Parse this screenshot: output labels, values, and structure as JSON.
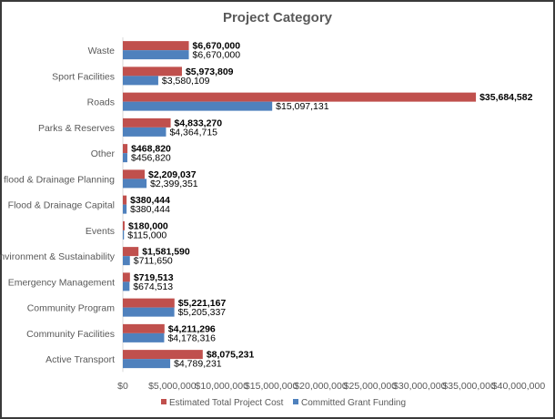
{
  "chart_data": {
    "type": "bar",
    "orientation": "horizontal",
    "title": "Project Category",
    "xlabel": "",
    "ylabel": "",
    "xlim": [
      0,
      40000000
    ],
    "x_ticks": [
      "$0",
      "$5,000,000",
      "$10,000,000",
      "$15,000,000",
      "$20,000,000",
      "$25,000,000",
      "$30,000,000",
      "$35,000,000",
      "$40,000,000"
    ],
    "grid": false,
    "legend_position": "bottom",
    "categories": [
      "Waste",
      "Sport Facilities",
      "Roads",
      "Parks & Reserves",
      "Other",
      "flood & Drainage Planning",
      "Flood & Drainage Capital",
      "Events",
      "Environment & Sustainability",
      "Emergency Management",
      "Community Program",
      "Community Facilities",
      "Active Transport"
    ],
    "series": [
      {
        "name": "Estimated Total Project Cost",
        "color": "#C0504D",
        "values": [
          6670000,
          5973809,
          35684582,
          4833270,
          468820,
          2209037,
          380444,
          180000,
          1581590,
          719513,
          5221167,
          4211296,
          8075231
        ],
        "labels": [
          "$6,670,000",
          "$5,973,809",
          "$35,684,582",
          "$4,833,270",
          "$468,820",
          "$2,209,037",
          "$380,444",
          "$180,000",
          "$1,581,590",
          "$719,513",
          "$5,221,167",
          "$4,211,296",
          "$8,075,231"
        ]
      },
      {
        "name": "Committed Grant Funding",
        "color": "#4F81BD",
        "values": [
          6670000,
          3580109,
          15097131,
          4364715,
          456820,
          2399351,
          380444,
          115000,
          711650,
          674513,
          5205337,
          4178316,
          4789231
        ],
        "labels": [
          "$6,670,000",
          "$3,580,109",
          "$15,097,131",
          "$4,364,715",
          "$456,820",
          "$2,399,351",
          "$380,444",
          "$115,000",
          "$711,650",
          "$674,513",
          "$5,205,337",
          "$4,178,316",
          "$4,789,231"
        ]
      }
    ]
  }
}
